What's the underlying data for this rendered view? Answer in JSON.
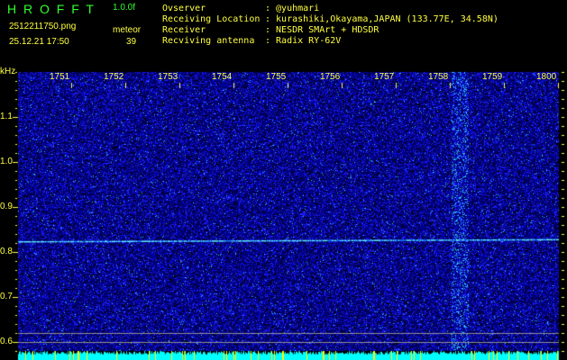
{
  "app": {
    "name": "H R O F F T",
    "version": "1.0.0f"
  },
  "file": {
    "name": "2512211750.png",
    "datetime": "25.12.21 17:50"
  },
  "meteor": {
    "label": "meteor",
    "count": "39"
  },
  "info": [
    {
      "label": "Ovserver",
      "value": ": @yuhmari"
    },
    {
      "label": "Receiving Location",
      "value": ": kurashiki,Okayama,JAPAN (133.77E, 34.58N)"
    },
    {
      "label": "Receiver",
      "value": ": NESDR SMArt + HDSDR"
    },
    {
      "label": "Recviving antenna",
      "value": ": Radix RY-62V"
    }
  ],
  "axis": {
    "y_unit": "kHz",
    "y_ticks": [
      "1.1",
      "1.0",
      "0.9",
      "0.8",
      "0.7",
      "0.6"
    ],
    "x_ticks": [
      "1751",
      "1752",
      "1753",
      "1754",
      "1755",
      "1756",
      "1757",
      "1758",
      "1759",
      "1800"
    ]
  },
  "colors": {
    "text": "#ffff40",
    "title": "#30ff30",
    "noise": "#0000c0",
    "signal": "#40e0ff",
    "power": "#00ffff"
  }
}
